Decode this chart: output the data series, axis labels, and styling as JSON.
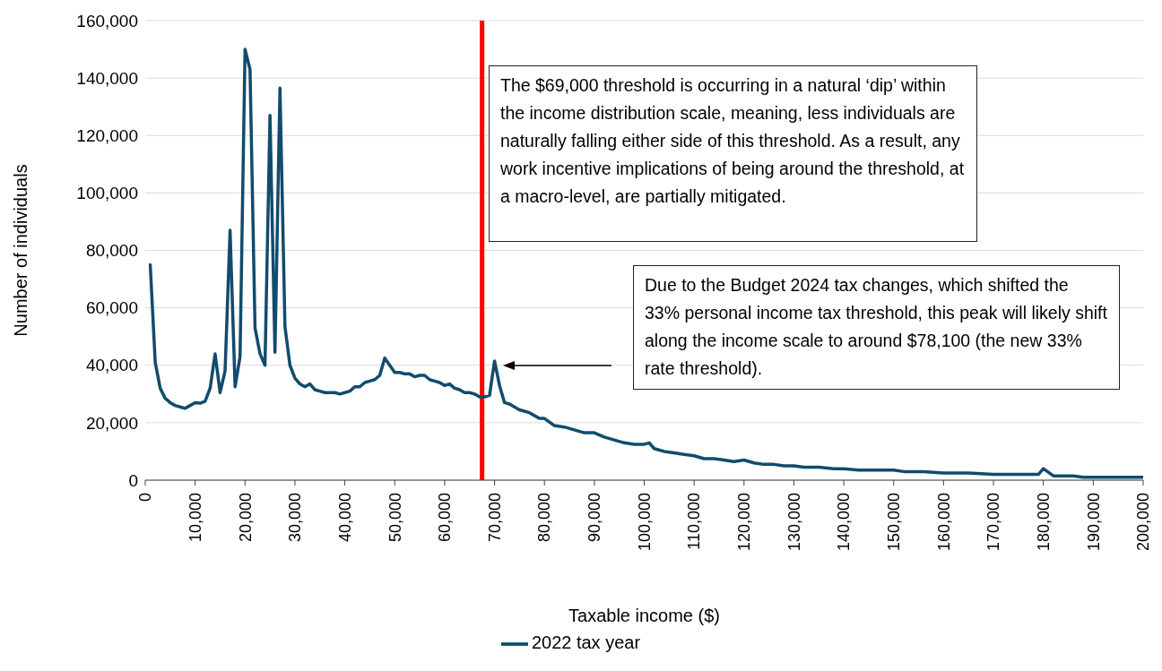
{
  "chart_data": {
    "type": "line",
    "xlabel": "Taxable income ($)",
    "ylabel": "Number of individuals",
    "x": [
      1000,
      2000,
      3000,
      4000,
      5000,
      6000,
      7000,
      8000,
      9000,
      10000,
      11000,
      12000,
      13000,
      14000,
      15000,
      16000,
      17000,
      18000,
      19000,
      20000,
      21000,
      22000,
      23000,
      24000,
      25000,
      26000,
      27000,
      28000,
      29000,
      30000,
      31000,
      32000,
      33000,
      34000,
      35000,
      36000,
      37000,
      38000,
      39000,
      40000,
      41000,
      42000,
      43000,
      44000,
      45000,
      46000,
      47000,
      48000,
      49000,
      50000,
      51000,
      52000,
      53000,
      54000,
      55000,
      56000,
      57000,
      58000,
      59000,
      60000,
      61000,
      62000,
      63000,
      64000,
      65000,
      66000,
      67000,
      68000,
      69000,
      70000,
      71000,
      72000,
      73000,
      74000,
      75000,
      76000,
      77000,
      78000,
      79000,
      80000,
      82000,
      84000,
      86000,
      88000,
      90000,
      92000,
      94000,
      96000,
      98000,
      100000,
      101000,
      102000,
      104000,
      106000,
      108000,
      110000,
      112000,
      114000,
      116000,
      118000,
      120000,
      122000,
      124000,
      126000,
      128000,
      130000,
      132000,
      135000,
      138000,
      140000,
      143000,
      146000,
      150000,
      152000,
      156000,
      160000,
      165000,
      170000,
      175000,
      179000,
      180000,
      182000,
      186000,
      188000,
      195000,
      200000
    ],
    "series": [
      {
        "name": "2022 tax year",
        "color": "#124b6e",
        "values": [
          75000,
          41000,
          32000,
          28500,
          27000,
          26000,
          25500,
          25000,
          26000,
          27000,
          26800,
          27500,
          32000,
          44000,
          30500,
          38000,
          87000,
          32500,
          43000,
          150000,
          143000,
          53000,
          44000,
          40000,
          127000,
          44500,
          136500,
          53500,
          40000,
          35500,
          33500,
          32500,
          33500,
          31500,
          31000,
          30500,
          30500,
          30500,
          30000,
          30500,
          31000,
          32500,
          32500,
          34000,
          34500,
          35000,
          36500,
          42500,
          40000,
          37500,
          37500,
          37000,
          37000,
          36000,
          36500,
          36500,
          35000,
          34500,
          34000,
          33000,
          33500,
          32000,
          31500,
          30500,
          30500,
          30000,
          29000,
          29000,
          29500,
          41500,
          33000,
          27000,
          26500,
          25500,
          24500,
          24000,
          23500,
          22500,
          21500,
          21500,
          19000,
          18500,
          17500,
          16500,
          16500,
          15000,
          14000,
          13000,
          12500,
          12500,
          13000,
          11000,
          10000,
          9500,
          9000,
          8500,
          7500,
          7500,
          7000,
          6500,
          7000,
          6000,
          5500,
          5500,
          5000,
          5000,
          4500,
          4500,
          4000,
          4000,
          3500,
          3500,
          3500,
          3000,
          3000,
          2500,
          2500,
          2000,
          2000,
          2000,
          4000,
          1500,
          1500,
          1000,
          1000,
          1000
        ]
      }
    ],
    "xlim": [
      0,
      200000
    ],
    "xticks": [
      0,
      {
        "value": 10000,
        "label": "10,000"
      },
      {
        "value": 20000,
        "label": "20,000"
      },
      {
        "value": 30000,
        "label": "30,000"
      },
      {
        "value": 40000,
        "label": "40,000"
      },
      {
        "value": 50000,
        "label": "50,000"
      },
      {
        "value": 60000,
        "label": "60,000"
      },
      {
        "value": 70000,
        "label": "70,000"
      },
      {
        "value": 80000,
        "label": "80,000"
      },
      {
        "value": 90000,
        "label": "90,000"
      },
      {
        "value": 100000,
        "label": "100,000"
      },
      {
        "value": 110000,
        "label": "110,000"
      },
      {
        "value": 120000,
        "label": "120,000"
      },
      {
        "value": 130000,
        "label": "130,000"
      },
      {
        "value": 140000,
        "label": "140,000"
      },
      {
        "value": 150000,
        "label": "150,000"
      },
      {
        "value": 160000,
        "label": "160,000"
      },
      {
        "value": 170000,
        "label": "170,000"
      },
      {
        "value": 180000,
        "label": "180,000"
      },
      {
        "value": 190000,
        "label": "190,000"
      },
      {
        "value": 200000,
        "label": "200,000"
      }
    ],
    "ylim": [
      0,
      160000
    ],
    "yticks": [
      0,
      {
        "value": 20000,
        "label": "20,000"
      },
      {
        "value": 40000,
        "label": "40,000"
      },
      {
        "value": 60000,
        "label": "60,000"
      },
      {
        "value": 80000,
        "label": "80,000"
      },
      {
        "value": 100000,
        "label": "100,000"
      },
      {
        "value": 120000,
        "label": "120,000"
      },
      {
        "value": 140000,
        "label": "140,000"
      },
      {
        "value": 160000,
        "label": "160,000"
      }
    ],
    "ref_lines": [
      {
        "axis": "x",
        "value": 67500,
        "color": "#ff0000"
      }
    ],
    "annotations": [
      "The $69,000 threshold is occurring in a natural ‘dip’ within the income distribution scale, meaning, less individuals are naturally falling either side of this threshold. As a result, any work incentive implications of being around the threshold, at a macro-level, are partially mitigated.",
      "Due to the Budget 2024 tax changes, which shifted the 33% personal income tax threshold, this peak will likely shift along the income scale to around $78,100 (the new 33% rate threshold)."
    ],
    "grid": "y",
    "legend": "bottom",
    "marker": "none",
    "line_style": "solid"
  }
}
